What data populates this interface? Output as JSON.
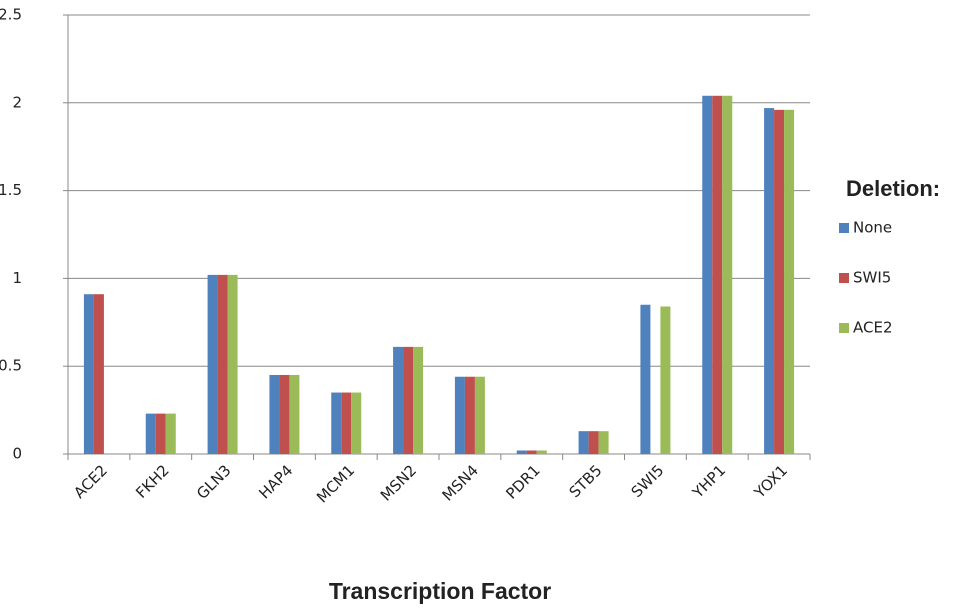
{
  "chart_data": {
    "type": "bar",
    "xlabel": "Transcription Factor",
    "legend_title": "Deletion:",
    "legend_position": "right",
    "categories": [
      "ACE2",
      "FKH2",
      "GLN3",
      "HAP4",
      "MCM1",
      "MSN2",
      "MSN4",
      "PDR1",
      "STB5",
      "SWI5",
      "YHP1",
      "YOX1"
    ],
    "series": [
      {
        "name": "None",
        "color": "#4f81bd",
        "values": [
          0.91,
          0.23,
          1.02,
          0.45,
          0.35,
          0.61,
          0.44,
          0.02,
          0.13,
          0.85,
          2.04,
          1.97
        ]
      },
      {
        "name": "SWI5",
        "color": "#c0504d",
        "values": [
          0.91,
          0.23,
          1.02,
          0.45,
          0.35,
          0.61,
          0.44,
          0.02,
          0.13,
          null,
          2.04,
          1.96
        ]
      },
      {
        "name": "ACE2",
        "color": "#9bbb59",
        "values": [
          null,
          0.23,
          1.02,
          0.45,
          0.35,
          0.61,
          0.44,
          0.02,
          0.13,
          0.84,
          2.04,
          1.96
        ]
      }
    ],
    "ylim": [
      0,
      2.5
    ],
    "yticks": [
      0,
      0.5,
      1,
      1.5,
      2,
      2.5
    ],
    "grid": true
  }
}
